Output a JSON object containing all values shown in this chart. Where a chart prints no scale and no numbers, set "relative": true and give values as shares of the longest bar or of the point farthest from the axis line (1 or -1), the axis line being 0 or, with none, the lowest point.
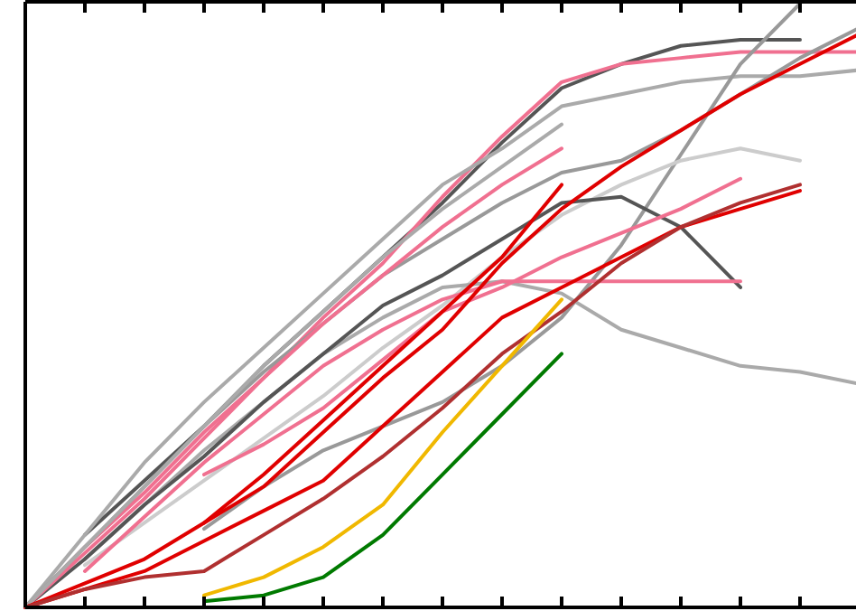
{
  "chart_data": {
    "type": "line",
    "relative": true,
    "categories": [
      null,
      null,
      null,
      null,
      null,
      null,
      null,
      null,
      null,
      null,
      null,
      null,
      null,
      null,
      null
    ],
    "marker": "none",
    "line_style": "solid",
    "series": [
      {
        "color": "#555555",
        "values": [
          null,
          0.12,
          0.21,
          0.3,
          0.4,
          0.49,
          0.58,
          0.67,
          0.77,
          0.86,
          0.9,
          0.93,
          0.94,
          0.94,
          null
        ]
      },
      {
        "color": "#f07090",
        "values": [
          0,
          0.1,
          0.19,
          0.29,
          0.38,
          0.48,
          0.57,
          0.68,
          0.78,
          0.87,
          0.9,
          0.91,
          0.92,
          0.92,
          0.92
        ]
      },
      {
        "color": "#aaaaaa",
        "values": [
          0,
          0.12,
          0.24,
          0.34,
          0.43,
          0.52,
          0.61,
          0.7,
          0.76,
          0.83,
          0.85,
          0.87,
          0.88,
          0.88,
          0.89
        ]
      },
      {
        "color": "#999999",
        "values": [
          null,
          null,
          null,
          0.13,
          0.2,
          0.26,
          0.3,
          0.34,
          0.4,
          0.48,
          0.6,
          0.75,
          0.9,
          1.0,
          null
        ]
      },
      {
        "color": "#cccccc",
        "values": [
          null,
          0.07,
          0.14,
          0.21,
          0.28,
          0.35,
          0.43,
          0.5,
          0.58,
          0.65,
          0.7,
          0.74,
          0.76,
          0.74,
          null
        ]
      },
      {
        "color": "#999999",
        "values": [
          0,
          0.1,
          0.2,
          0.3,
          0.39,
          0.47,
          0.55,
          0.61,
          0.67,
          0.72,
          0.74,
          0.79,
          0.85,
          0.91,
          0.96
        ]
      },
      {
        "color": "#aaaaaa",
        "values": [
          null,
          0.08,
          0.17,
          0.26,
          0.34,
          0.42,
          0.48,
          0.53,
          0.54,
          0.52,
          0.46,
          0.43,
          0.4,
          0.39,
          0.37
        ]
      },
      {
        "color": "#555555",
        "values": [
          0,
          0.08,
          0.17,
          0.25,
          0.34,
          0.42,
          0.5,
          0.55,
          0.61,
          0.67,
          0.68,
          0.63,
          0.53,
          null,
          null
        ]
      },
      {
        "color": "#f07090",
        "values": [
          null,
          0.06,
          0.15,
          0.24,
          0.32,
          0.4,
          0.46,
          0.51,
          0.54,
          0.54,
          0.54,
          0.54,
          0.54,
          null,
          null
        ]
      },
      {
        "color": "#f07090",
        "values": [
          null,
          null,
          null,
          0.22,
          0.27,
          0.33,
          0.41,
          0.49,
          0.53,
          0.58,
          0.62,
          0.66,
          0.71,
          null,
          null
        ]
      },
      {
        "color": "#f07090",
        "values": [
          0,
          0.09,
          0.18,
          0.28,
          0.38,
          0.47,
          0.55,
          0.63,
          0.7,
          0.76,
          null,
          null,
          null,
          null,
          null
        ]
      },
      {
        "color": "#aaaaaa",
        "values": [
          0,
          0.1,
          0.2,
          0.3,
          0.4,
          0.49,
          0.58,
          0.66,
          0.73,
          0.8,
          null,
          null,
          null,
          null,
          null
        ]
      },
      {
        "color": "#e00000",
        "values": [
          null,
          null,
          null,
          0.14,
          0.22,
          0.31,
          0.4,
          0.49,
          0.58,
          0.7,
          null,
          null,
          null,
          null,
          null
        ]
      },
      {
        "color": "#e00000",
        "values": [
          0,
          0.04,
          0.08,
          0.14,
          0.2,
          0.29,
          0.38,
          0.46,
          0.57,
          0.66,
          0.73,
          0.79,
          0.85,
          0.9,
          0.95
        ]
      },
      {
        "color": "#e00000",
        "values": [
          0,
          0.03,
          0.06,
          0.11,
          0.16,
          0.21,
          0.3,
          0.39,
          0.48,
          0.53,
          0.58,
          0.63,
          0.66,
          0.69,
          null
        ]
      },
      {
        "color": "#b03030",
        "values": [
          0,
          0.03,
          0.05,
          0.06,
          0.12,
          0.18,
          0.25,
          0.33,
          0.42,
          0.49,
          0.57,
          0.63,
          0.67,
          0.7,
          null
        ]
      },
      {
        "color": "#f0b800",
        "values": [
          null,
          null,
          null,
          0.02,
          0.05,
          0.1,
          0.17,
          0.29,
          0.4,
          0.51,
          null,
          null,
          null,
          null,
          null
        ]
      },
      {
        "color": "#007a00",
        "values": [
          null,
          null,
          null,
          0.01,
          0.02,
          0.05,
          0.12,
          0.22,
          0.32,
          0.42,
          null,
          null,
          null,
          null,
          null
        ]
      }
    ]
  }
}
